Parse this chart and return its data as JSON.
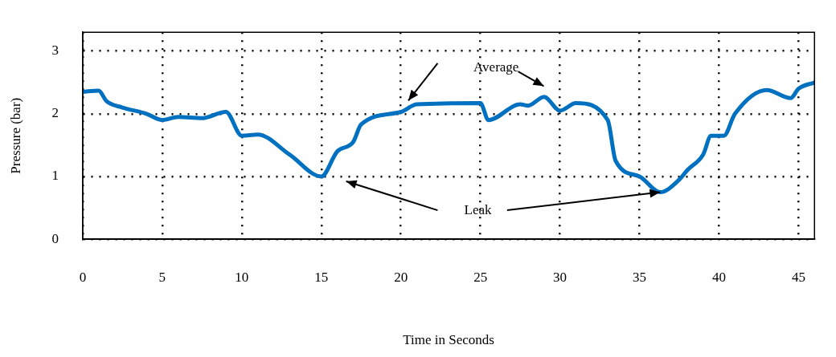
{
  "chart_data": {
    "type": "line",
    "xlabel": "Time in Seconds",
    "ylabel": "Pressure (bar)",
    "xlim": [
      0,
      46
    ],
    "ylim": [
      0,
      3.3
    ],
    "xticks": [
      0,
      5,
      10,
      15,
      20,
      25,
      30,
      35,
      40,
      45
    ],
    "yticks": [
      0,
      1,
      2,
      3
    ],
    "grid": true,
    "marker": "none",
    "line_style": "solid",
    "series": [
      {
        "color": "#0070c0",
        "x": [
          0,
          1,
          1.5,
          2.5,
          4,
          5,
          6,
          7.5,
          9,
          10,
          11,
          13,
          15,
          16,
          17,
          17.5,
          20,
          21,
          25,
          25.5,
          27.5,
          28,
          29,
          30,
          31,
          33,
          33.5,
          35,
          36.3,
          37.5,
          38,
          39,
          39.5,
          40.3,
          41,
          43,
          44.5,
          45,
          46
        ],
        "values": [
          2.35,
          2.37,
          2.2,
          2.1,
          2.0,
          1.9,
          1.95,
          1.93,
          2.03,
          1.65,
          1.67,
          1.35,
          1.0,
          1.4,
          1.55,
          1.83,
          2.03,
          2.15,
          2.17,
          1.9,
          2.15,
          2.13,
          2.27,
          2.05,
          2.17,
          1.9,
          1.25,
          1.0,
          0.75,
          0.95,
          1.1,
          1.35,
          1.65,
          1.65,
          2.0,
          2.38,
          2.25,
          2.4,
          2.5
        ]
      }
    ],
    "annotations": [
      "Average",
      {
        "text": "Leak",
        "x": 36.3,
        "y": 0.75
      }
    ]
  }
}
